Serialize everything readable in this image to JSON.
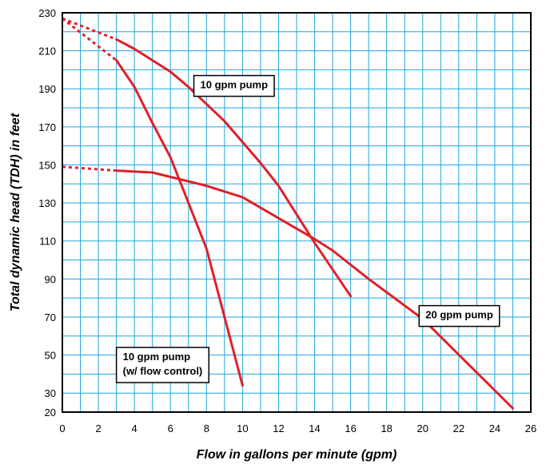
{
  "chart_data": {
    "type": "line",
    "xlabel": "Flow in gallons per minute (gpm)",
    "ylabel": "Total dynamic head (TDH) in feet",
    "xlim": [
      0,
      26
    ],
    "ylim": [
      20,
      230
    ],
    "x_ticks": [
      0,
      2,
      4,
      6,
      8,
      10,
      12,
      14,
      16,
      18,
      20,
      22,
      24,
      26
    ],
    "y_ticks": [
      20,
      30,
      50,
      70,
      90,
      110,
      130,
      150,
      170,
      190,
      210,
      230
    ],
    "grid": true,
    "colors": {
      "grid": "#1fa6dc",
      "line": "#e0202a",
      "axis": "#000000"
    },
    "series": [
      {
        "name": "10 gpm pump",
        "label_lines": [
          "10 gpm pump"
        ],
        "label_anchor": [
          7.3,
          197
        ],
        "extrapolated": [
          [
            0,
            227
          ],
          [
            3,
            216
          ]
        ],
        "x": [
          3,
          4,
          5,
          6,
          7,
          8,
          9,
          10,
          11,
          12,
          13,
          14,
          15,
          16
        ],
        "y": [
          216,
          211,
          205,
          199,
          191,
          182,
          173,
          162,
          151,
          139,
          124,
          109,
          95,
          81
        ]
      },
      {
        "name": "10 gpm pump (w/ flow control)",
        "label_lines": [
          "10 gpm pump",
          "(w/ flow control)"
        ],
        "label_anchor": [
          3,
          54
        ],
        "extrapolated": [
          [
            0,
            227
          ],
          [
            3,
            205
          ]
        ],
        "x": [
          3,
          4,
          5,
          6,
          7,
          8,
          9,
          10
        ],
        "y": [
          205,
          191,
          172,
          154,
          130,
          106,
          70,
          34
        ]
      },
      {
        "name": "20 gpm pump",
        "label_lines": [
          "20 gpm pump"
        ],
        "label_anchor": [
          19.8,
          76
        ],
        "extrapolated": [
          [
            0,
            149
          ],
          [
            3,
            147
          ]
        ],
        "x": [
          3,
          5,
          8,
          10,
          12,
          14,
          15,
          17,
          20,
          25
        ],
        "y": [
          147,
          146,
          139,
          133,
          122,
          111,
          105,
          90,
          69,
          22
        ]
      }
    ]
  }
}
